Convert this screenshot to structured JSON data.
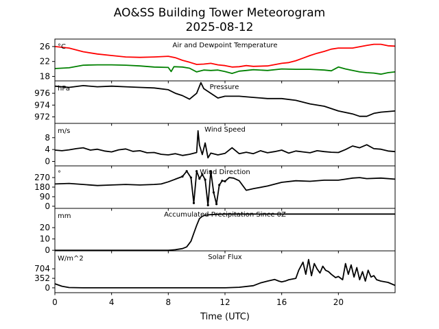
{
  "chart_data": {
    "type": "line",
    "title": "AO&SS Building Tower Meteorogram",
    "subtitle": "2025-08-12",
    "xlabel": "Time (UTC)",
    "xlim": [
      0,
      24
    ],
    "xticks": [
      0,
      4,
      8,
      12,
      16,
      20
    ],
    "panels": [
      {
        "id": "temp",
        "title": "Air and Dewpoint Temperature",
        "units": "°C",
        "ylim": [
          16.8,
          28.0
        ],
        "yticks": [
          18,
          22,
          26
        ],
        "series": [
          {
            "name": "Air Temperature",
            "color": "#ff0000",
            "x": [
              0,
              1,
              2,
              3,
              4,
              5,
              6,
              7,
              8,
              8.5,
              9,
              9.5,
              10,
              10.5,
              11,
              11.5,
              12,
              12.5,
              13,
              13.5,
              14,
              15,
              16,
              16.5,
              17,
              17.5,
              18,
              18.5,
              19,
              19.5,
              20,
              20.5,
              21,
              22,
              22.5,
              23,
              23.5,
              24
            ],
            "y": [
              26.0,
              25.6,
              24.6,
              24.0,
              23.6,
              23.2,
              23.1,
              23.2,
              23.4,
              23.0,
              22.3,
              21.8,
              21.2,
              21.3,
              21.5,
              21.1,
              20.9,
              20.5,
              20.6,
              20.9,
              20.7,
              20.8,
              21.5,
              21.7,
              22.2,
              22.9,
              23.6,
              24.2,
              24.7,
              25.3,
              25.6,
              25.6,
              25.6,
              26.3,
              26.6,
              26.6,
              26.2,
              26.1
            ]
          },
          {
            "name": "Dewpoint Temperature",
            "color": "#008000",
            "x": [
              0,
              1,
              2,
              3,
              4,
              5,
              6,
              7,
              8,
              8.2,
              8.4,
              9,
              9.5,
              10,
              10.5,
              11,
              11.5,
              12,
              12.5,
              13,
              13.5,
              14,
              15,
              16,
              17,
              18,
              19,
              19.5,
              20,
              20.5,
              21,
              21.5,
              22,
              22.5,
              23,
              23.5,
              24
            ],
            "y": [
              20.1,
              20.3,
              21.0,
              21.1,
              21.1,
              21.0,
              20.8,
              20.5,
              20.4,
              19.3,
              20.6,
              20.5,
              20.2,
              19.2,
              19.7,
              19.6,
              19.7,
              19.3,
              18.8,
              19.4,
              19.6,
              19.8,
              19.6,
              20.0,
              19.9,
              19.9,
              19.7,
              19.5,
              20.5,
              20.0,
              19.6,
              19.2,
              19.0,
              18.9,
              18.6,
              19.0,
              19.2
            ]
          }
        ]
      },
      {
        "id": "pres",
        "title": "Pressure",
        "units": "hPa",
        "ylim": [
          970.9,
          978.1
        ],
        "yticks": [
          972,
          974,
          976
        ],
        "series": [
          {
            "name": "Pressure",
            "color": "#000000",
            "x": [
              0,
              1,
              2,
              3,
              4,
              5,
              6,
              7,
              8,
              8.5,
              9,
              9.5,
              10,
              10.3,
              10.5,
              11,
              11.5,
              12,
              13,
              14,
              15,
              16,
              17,
              18,
              19,
              20,
              21,
              21.5,
              22,
              22.5,
              23,
              24
            ],
            "y": [
              977.2,
              977.0,
              977.3,
              977.1,
              977.2,
              977.1,
              977.0,
              976.9,
              976.6,
              976.0,
              975.6,
              975.0,
              976.0,
              977.8,
              976.8,
              976.0,
              975.2,
              975.5,
              975.5,
              975.3,
              975.1,
              975.1,
              974.8,
              974.2,
              973.8,
              973.0,
              972.5,
              972.1,
              972.1,
              972.6,
              972.8,
              973.0
            ]
          }
        ]
      },
      {
        "id": "wspd",
        "title": "Wind Speed",
        "units": "m/s",
        "ylim": [
          -1.5,
          12.8
        ],
        "yticks": [
          0,
          4,
          8
        ],
        "series": [
          {
            "name": "Wind Speed",
            "color": "#000000",
            "x": [
              0,
              0.5,
              1,
              1.5,
              2,
              2.5,
              3,
              3.5,
              4,
              4.5,
              5,
              5.5,
              6,
              6.5,
              7,
              7.5,
              8,
              8.5,
              9,
              9.5,
              10,
              10.1,
              10.2,
              10.4,
              10.6,
              10.8,
              11,
              11.5,
              12,
              12.5,
              13,
              13.5,
              14,
              14.5,
              15,
              15.5,
              16,
              16.5,
              17,
              17.5,
              18,
              18.5,
              19,
              19.5,
              20,
              20.5,
              21,
              21.5,
              22,
              22.5,
              23,
              23.5,
              24
            ],
            "y": [
              3.8,
              3.6,
              3.9,
              4.3,
              4.6,
              3.8,
              4.1,
              3.5,
              3.2,
              3.9,
              4.2,
              3.4,
              3.6,
              2.9,
              3.0,
              2.4,
              2.2,
              2.6,
              2.0,
              2.4,
              3.0,
              10.3,
              5.5,
              2.3,
              6.2,
              1.2,
              2.8,
              2.2,
              2.7,
              4.6,
              2.6,
              3.1,
              2.6,
              3.6,
              2.9,
              3.3,
              3.8,
              2.8,
              3.5,
              3.2,
              2.9,
              3.6,
              3.3,
              3.1,
              3.0,
              4.0,
              5.2,
              4.6,
              5.6,
              4.3,
              4.1,
              3.5,
              3.3
            ]
          }
        ]
      },
      {
        "id": "wdir",
        "title": "Wind Direction",
        "units": "°",
        "ylim": [
          -20,
          380
        ],
        "yticks": [
          0,
          90,
          180,
          270
        ],
        "series": [
          {
            "name": "Wind Direction",
            "color": "#000000",
            "x": [
              0,
              1,
              2,
              3,
              4,
              5,
              6,
              7,
              7.5,
              8,
              8.5,
              9,
              9.3,
              9.6,
              9.8,
              10.0,
              10.2,
              10.4,
              10.6,
              10.8,
              11.0,
              11.2,
              11.4,
              11.6,
              11.8,
              12.0,
              12.3,
              12.6,
              13.0,
              13.5,
              14,
              15,
              16,
              17,
              18,
              19,
              20,
              20.5,
              21,
              21.5,
              22,
              23,
              24
            ],
            "y": [
              210,
              215,
              205,
              195,
              200,
              205,
              200,
              205,
              210,
              230,
              255,
              280,
              330,
              270,
              30,
              330,
              260,
              300,
              250,
              10,
              330,
              130,
              20,
              200,
              240,
              235,
              270,
              265,
              240,
              150,
              165,
              190,
              225,
              240,
              235,
              245,
              245,
              255,
              265,
              270,
              260,
              265,
              255
            ]
          }
        ]
      },
      {
        "id": "precip",
        "title": "Accumulated Precipitation Since 0Z",
        "units": "mm",
        "ylim": [
          -0.5,
          37.0
        ],
        "yticks": [
          0,
          10,
          20
        ],
        "series": [
          {
            "name": "Accumulated Precipitation",
            "color": "#000000",
            "x": [
              0,
              8,
              8.5,
              9,
              9.3,
              9.6,
              9.8,
              10.0,
              10.2,
              10.4,
              10.6,
              11,
              12,
              16,
              20,
              24
            ],
            "y": [
              0,
              0,
              0.5,
              1.5,
              3,
              8,
              15,
              22,
              28,
              30,
              31,
              31.5,
              32,
              32,
              32,
              32
            ]
          }
        ]
      },
      {
        "id": "solar",
        "title": "Solar Flux",
        "units": "W/m^2",
        "ylim": [
          -180,
          1370
        ],
        "yticks": [
          0,
          352,
          704
        ],
        "series": [
          {
            "name": "Solar Flux",
            "color": "#000000",
            "x": [
              0,
              0.5,
              1,
              2,
              4,
              6,
              8,
              10,
              12,
              13,
              14,
              14.5,
              15,
              15.5,
              15.8,
              16,
              16.3,
              16.5,
              17,
              17.2,
              17.5,
              17.7,
              17.9,
              18.1,
              18.3,
              18.5,
              18.7,
              18.9,
              19.1,
              19.3,
              19.5,
              19.8,
              20,
              20.3,
              20.5,
              20.7,
              20.9,
              21.1,
              21.3,
              21.5,
              21.7,
              21.9,
              22.1,
              22.3,
              22.5,
              22.7,
              23,
              23.5,
              24
            ],
            "y": [
              150,
              60,
              10,
              0,
              0,
              0,
              0,
              0,
              0,
              20,
              80,
              180,
              250,
              310,
              250,
              220,
              260,
              300,
              350,
              650,
              950,
              500,
              1050,
              450,
              900,
              700,
              550,
              800,
              650,
              600,
              500,
              380,
              420,
              300,
              900,
              500,
              850,
              400,
              750,
              300,
              600,
              250,
              650,
              400,
              450,
              300,
              250,
              200,
              90
            ]
          }
        ]
      }
    ]
  }
}
